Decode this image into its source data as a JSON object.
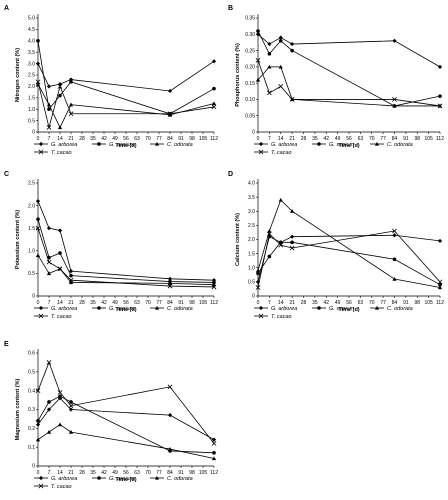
{
  "figure": {
    "x_ticks": [
      0,
      7,
      14,
      21,
      28,
      35,
      42,
      49,
      56,
      63,
      70,
      77,
      84,
      91,
      98,
      105,
      112
    ],
    "legend_entries": [
      "G. arborea",
      "G. sepium",
      "C. odorata",
      "T. cacao"
    ],
    "series_colors": [
      "#000000",
      "#000000",
      "#000000",
      "#000000"
    ]
  },
  "chart_data": [
    {
      "type": "line",
      "panel": "A",
      "xlabel": "Time (d)",
      "ylabel": "Nitrogen content (%)",
      "ylim": [
        0,
        5
      ],
      "yticks": [
        "0",
        "0.5",
        "1.0",
        "1.5",
        "2.0",
        "2.5",
        "3.0",
        "3.5",
        "4.0",
        "4.5",
        "5.0"
      ],
      "series": [
        {
          "name": "G. arborea",
          "marker": "diamond",
          "x": [
            0,
            7,
            14,
            21,
            84,
            112
          ],
          "y": [
            3.0,
            2.0,
            2.1,
            2.3,
            1.8,
            3.1
          ]
        },
        {
          "name": "G. sepium",
          "marker": "circle",
          "x": [
            0,
            7,
            14,
            21,
            84,
            112
          ],
          "y": [
            4.0,
            1.0,
            1.6,
            2.2,
            0.8,
            1.9
          ]
        },
        {
          "name": "C. odorata",
          "marker": "triangle",
          "x": [
            0,
            7,
            14,
            21,
            84,
            112
          ],
          "y": [
            2.1,
            1.2,
            0.2,
            1.2,
            0.75,
            1.25
          ]
        },
        {
          "name": "T. cacao",
          "marker": "cross",
          "x": [
            0,
            7,
            14,
            21,
            84,
            112
          ],
          "y": [
            2.2,
            0.2,
            2.0,
            0.8,
            0.8,
            1.1
          ]
        }
      ]
    },
    {
      "type": "line",
      "panel": "B",
      "xlabel": "Time (d)",
      "ylabel": "Phosphorus content (%)",
      "ylim": [
        0,
        0.35
      ],
      "yticks": [
        "0",
        "0.05",
        "0.10",
        "0.15",
        "0.20",
        "0.25",
        "0.30",
        "0.35"
      ],
      "series": [
        {
          "name": "G. arborea",
          "marker": "diamond",
          "x": [
            0,
            7,
            14,
            21,
            84,
            112
          ],
          "y": [
            0.3,
            0.27,
            0.29,
            0.27,
            0.28,
            0.2
          ]
        },
        {
          "name": "G. sepium",
          "marker": "circle",
          "x": [
            0,
            7,
            14,
            21,
            84,
            112
          ],
          "y": [
            0.31,
            0.24,
            0.28,
            0.25,
            0.08,
            0.11
          ]
        },
        {
          "name": "C. odorata",
          "marker": "triangle",
          "x": [
            0,
            7,
            14,
            21,
            84,
            112
          ],
          "y": [
            0.16,
            0.2,
            0.2,
            0.1,
            0.08,
            0.08
          ]
        },
        {
          "name": "T. cacao",
          "marker": "cross",
          "x": [
            0,
            7,
            14,
            21,
            84,
            112
          ],
          "y": [
            0.22,
            0.12,
            0.14,
            0.1,
            0.1,
            0.08
          ]
        }
      ]
    },
    {
      "type": "line",
      "panel": "C",
      "xlabel": "Time (d)",
      "ylabel": "Potassium content (%)",
      "ylim": [
        0,
        2.5
      ],
      "yticks": [
        "0",
        "0.5",
        "1.0",
        "1.5",
        "2.0",
        "2.5"
      ],
      "series": [
        {
          "name": "G. arborea",
          "marker": "diamond",
          "x": [
            0,
            7,
            14,
            21,
            84,
            112
          ],
          "y": [
            2.1,
            1.5,
            1.45,
            0.55,
            0.38,
            0.35
          ]
        },
        {
          "name": "G. sepium",
          "marker": "circle",
          "x": [
            0,
            7,
            14,
            21,
            84,
            112
          ],
          "y": [
            1.7,
            0.85,
            0.95,
            0.45,
            0.32,
            0.3
          ]
        },
        {
          "name": "C. odorata",
          "marker": "triangle",
          "x": [
            0,
            7,
            14,
            21,
            84,
            112
          ],
          "y": [
            0.9,
            0.5,
            0.6,
            0.3,
            0.28,
            0.25
          ]
        },
        {
          "name": "T. cacao",
          "marker": "cross",
          "x": [
            0,
            7,
            14,
            21,
            84,
            112
          ],
          "y": [
            1.5,
            0.75,
            0.6,
            0.35,
            0.22,
            0.2
          ]
        }
      ]
    },
    {
      "type": "line",
      "panel": "D",
      "xlabel": "Time (d)",
      "ylabel": "Calcium content (%)",
      "ylim": [
        0,
        4
      ],
      "yticks": [
        "0",
        "0.5",
        "1.0",
        "1.5",
        "2.0",
        "2.5",
        "3.0",
        "3.5",
        "4.0"
      ],
      "series": [
        {
          "name": "G. arborea",
          "marker": "diamond",
          "x": [
            0,
            7,
            14,
            21,
            84,
            112
          ],
          "y": [
            0.5,
            2.1,
            1.9,
            2.1,
            2.15,
            1.95
          ]
        },
        {
          "name": "G. sepium",
          "marker": "circle",
          "x": [
            0,
            7,
            14,
            21,
            84,
            112
          ],
          "y": [
            0.8,
            1.4,
            1.9,
            1.9,
            1.3,
            0.4
          ]
        },
        {
          "name": "C. odorata",
          "marker": "triangle",
          "x": [
            0,
            7,
            14,
            21,
            84,
            112
          ],
          "y": [
            0.9,
            2.3,
            3.4,
            3.0,
            0.6,
            0.3
          ]
        },
        {
          "name": "T. cacao",
          "marker": "cross",
          "x": [
            0,
            7,
            14,
            21,
            84,
            112
          ],
          "y": [
            0.3,
            2.2,
            1.8,
            1.7,
            2.3,
            0.5
          ]
        }
      ]
    },
    {
      "type": "line",
      "panel": "E",
      "xlabel": "Time (d)",
      "ylabel": "Magnesium content (%)",
      "ylim": [
        0,
        0.6
      ],
      "yticks": [
        "0",
        "0.1",
        "0.2",
        "0.3",
        "0.4",
        "0.5",
        "0.6"
      ],
      "series": [
        {
          "name": "G. arborea",
          "marker": "diamond",
          "x": [
            0,
            7,
            14,
            21,
            84,
            112
          ],
          "y": [
            0.22,
            0.3,
            0.36,
            0.3,
            0.27,
            0.14
          ]
        },
        {
          "name": "G. sepium",
          "marker": "circle",
          "x": [
            0,
            7,
            14,
            21,
            84,
            112
          ],
          "y": [
            0.24,
            0.34,
            0.37,
            0.34,
            0.08,
            0.07
          ]
        },
        {
          "name": "C. odorata",
          "marker": "triangle",
          "x": [
            0,
            7,
            14,
            21,
            84,
            112
          ],
          "y": [
            0.14,
            0.18,
            0.22,
            0.18,
            0.09,
            0.04
          ]
        },
        {
          "name": "T. cacao",
          "marker": "cross",
          "x": [
            0,
            7,
            14,
            21,
            84,
            112
          ],
          "y": [
            0.4,
            0.55,
            0.39,
            0.32,
            0.42,
            0.12
          ]
        }
      ]
    }
  ]
}
